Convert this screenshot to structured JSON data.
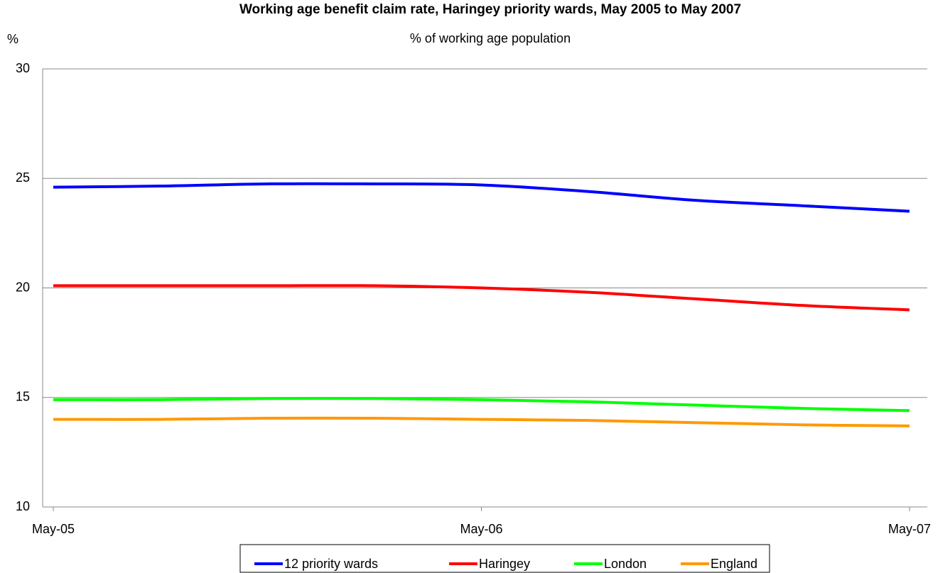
{
  "chart_data": {
    "type": "line",
    "title": "Working age benefit claim rate, Haringey priority wards, May 2005 to May 2007",
    "subtitle": "% of working age population",
    "y_label": "%",
    "categories": [
      "May-05",
      null,
      null,
      null,
      "May-06",
      null,
      null,
      null,
      "May-07"
    ],
    "series": [
      {
        "name": "12 priority wards",
        "color": "#0000ff",
        "values": [
          24.6,
          24.65,
          24.75,
          24.75,
          24.7,
          24.4,
          24.0,
          23.75,
          23.5
        ]
      },
      {
        "name": "Haringey",
        "color": "#ff0000",
        "values": [
          20.1,
          20.1,
          20.1,
          20.1,
          20.0,
          19.8,
          19.5,
          19.2,
          19.0
        ]
      },
      {
        "name": "London",
        "color": "#00ff00",
        "values": [
          14.9,
          14.9,
          14.95,
          14.95,
          14.9,
          14.8,
          14.65,
          14.5,
          14.4
        ]
      },
      {
        "name": "England",
        "color": "#ff9900",
        "values": [
          14.0,
          14.0,
          14.05,
          14.05,
          14.0,
          13.95,
          13.85,
          13.75,
          13.7
        ]
      }
    ],
    "ylim": [
      10,
      30
    ],
    "yticks": [
      10,
      15,
      20,
      25,
      30
    ],
    "grid": true,
    "legend": "bottom"
  }
}
